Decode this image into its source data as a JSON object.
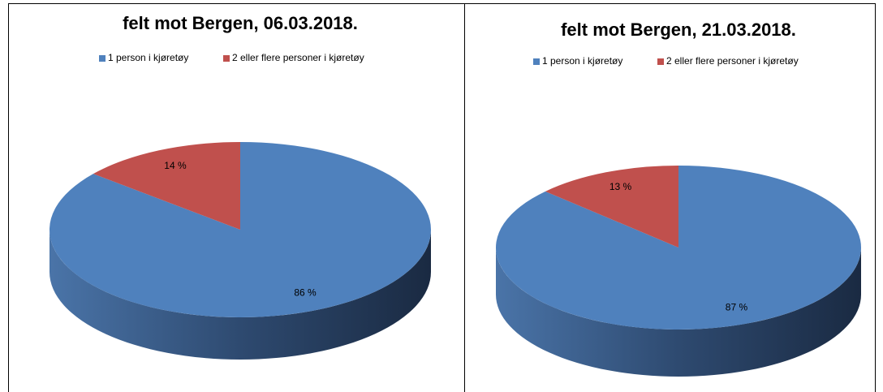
{
  "chart_data": [
    {
      "type": "pie",
      "title": "felt mot Bergen, 06.03.2018.",
      "categories": [
        "1 person i kjøretøy",
        "2 eller flere personer i kjøretøy"
      ],
      "values": [
        86,
        14
      ],
      "value_labels": [
        "86 %",
        "14 %"
      ],
      "colors": [
        "#4f81bd",
        "#c0504d"
      ],
      "legend": "top"
    },
    {
      "type": "pie",
      "title": "felt mot Bergen, 21.03.2018.",
      "categories": [
        "1 person i kjøretøy",
        "2 eller flere personer i kjøretøy"
      ],
      "values": [
        87,
        13
      ],
      "value_labels": [
        "87 %",
        "13 %"
      ],
      "colors": [
        "#4f81bd",
        "#c0504d"
      ],
      "legend": "top"
    }
  ]
}
